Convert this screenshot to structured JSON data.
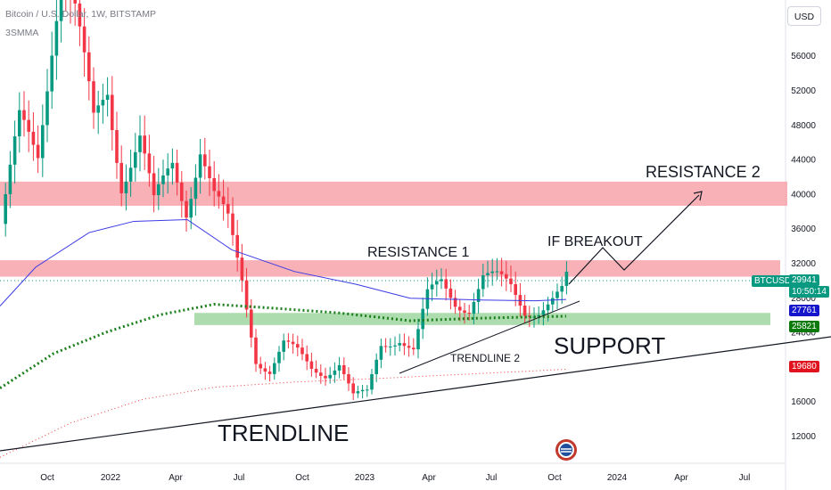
{
  "header": {
    "symbol_line": "Bitcoin / U.S. Dollar, 1W, BITSTAMP",
    "indicator": "3SMMA"
  },
  "currency_button": "USD",
  "price_tags": {
    "ticker": "BTCUSD",
    "price": "29941",
    "countdown": "10:50:14",
    "ma_blue": "27761",
    "ma_green": "25821",
    "ma_red": "19680"
  },
  "colors": {
    "up": "#089981",
    "down": "#f23645",
    "ma_blue": "#3a3ae6",
    "ma_green": "#1b7f1b",
    "ma_red": "#e53935",
    "resistance_zone": "#f7a3aa",
    "support_zone": "#9fd6a0"
  },
  "chart_data": {
    "type": "candlestick",
    "y_ticks": [
      12000,
      16000,
      20000,
      24000,
      28000,
      32000,
      36000,
      40000,
      44000,
      48000,
      52000,
      56000
    ],
    "y_range": [
      8000,
      62000
    ],
    "x_ticks": [
      "Oct",
      "2022",
      "Apr",
      "Jul",
      "Oct",
      "2023",
      "Apr",
      "Jul",
      "Oct",
      "2024",
      "Apr",
      "Jul"
    ],
    "zones": [
      {
        "kind": "resistance",
        "low": 38600,
        "high": 41400
      },
      {
        "kind": "resistance",
        "low": 30400,
        "high": 32300
      },
      {
        "kind": "support",
        "low": 24800,
        "high": 26200
      }
    ],
    "annotations": [
      "RESISTANCE 2",
      "RESISTANCE 1",
      "IF BREAKOUT",
      "SUPPORT",
      "TRENDLINE 2",
      "TRENDLINE"
    ],
    "last_price": 29941,
    "ma_values": {
      "blue": 27761,
      "green": 25821,
      "red": 19680
    }
  }
}
